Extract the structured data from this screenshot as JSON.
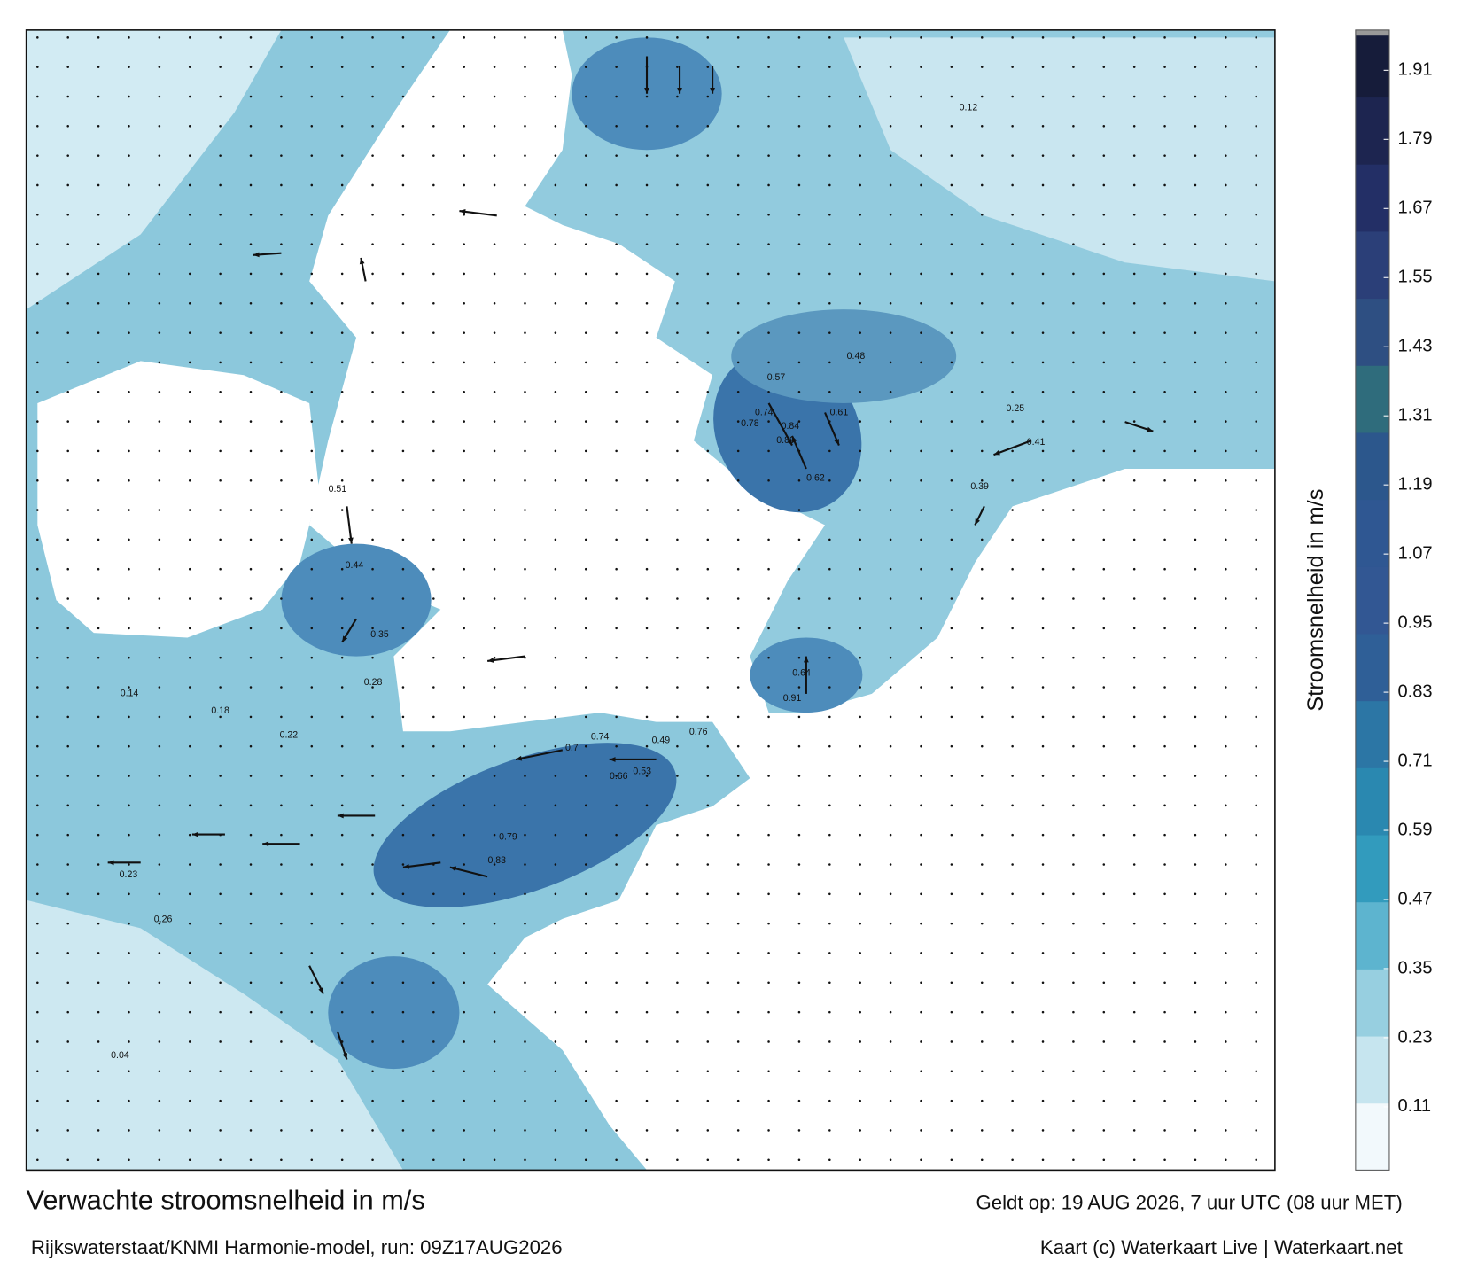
{
  "map": {
    "title": "Verwachte stroomsnelheid in m/s",
    "subtitle": "Rijkswaterstaat/KNMI Harmonie-model, run: 09Z17AUG2026",
    "valid_time": "Geldt op: 19 AUG 2026, 7 uur UTC (08 uur MET)",
    "credit": "Kaart (c) Waterkaart Live | Waterkaart.net",
    "current_labels": [
      0.89,
      0.84,
      0.78,
      0.74,
      0.62,
      0.61,
      0.57,
      0.48,
      0.91,
      0.64,
      0.7,
      0.74,
      0.76,
      0.83,
      0.79,
      0.66,
      0.53,
      0.49,
      0.51,
      0.44,
      0.35,
      0.28,
      0.22,
      0.18,
      0.14,
      0.04,
      0.23,
      0.26,
      0.12,
      0.25,
      0.41,
      0.39
    ]
  },
  "colorbar": {
    "label": "Stroomsnelheid in m/s",
    "range": [
      0,
      1.98
    ],
    "ticks": [
      0.11,
      0.23,
      0.35,
      0.47,
      0.59,
      0.71,
      0.83,
      0.95,
      1.07,
      1.19,
      1.31,
      1.43,
      1.55,
      1.67,
      1.79,
      1.91
    ]
  }
}
